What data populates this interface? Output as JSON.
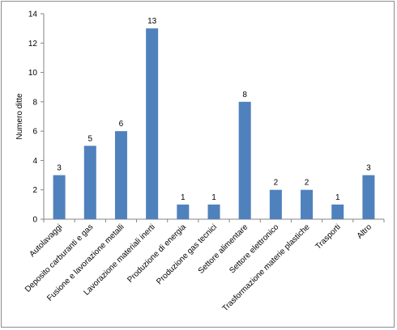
{
  "chart_data": {
    "type": "bar",
    "ylabel": "Numero ditte",
    "ylim": [
      0,
      14
    ],
    "yticks": [
      0,
      2,
      4,
      6,
      8,
      10,
      12,
      14
    ],
    "grid": false,
    "legend": "none",
    "bar_color": "#4f81bd",
    "categories": [
      "Autolavaggi",
      "Deposito carburanti e gas",
      "Fusione e lavorazione metalli",
      "Lavorazione materiali inerti",
      "Produzione di energia",
      "Produzione gas tecnici",
      "Settore alimentare",
      "Settore elettronico",
      "Trasformazione materie plastiche",
      "Trasporti",
      "Altro"
    ],
    "values": [
      3,
      5,
      6,
      13,
      1,
      1,
      8,
      2,
      2,
      1,
      3
    ]
  }
}
